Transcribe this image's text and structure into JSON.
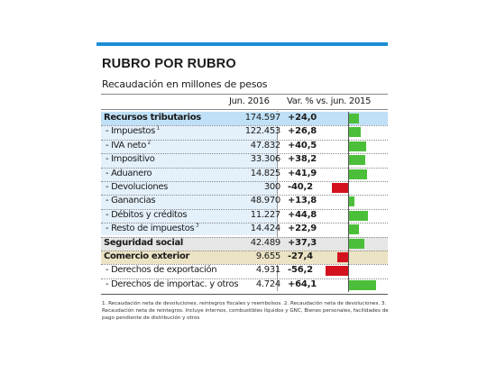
{
  "title": "RUBRO POR RUBRO",
  "subtitle": "Recaudación en millones de pesos",
  "columns": {
    "amount": "Jun. 2016",
    "variation": "Var. % vs. jun. 2015"
  },
  "rows": [
    {
      "label": "Recursos tributarios",
      "sup": "",
      "amount": "174.597",
      "variation": "+24,0"
    },
    {
      "label": "- Impuestos",
      "sup": "1",
      "amount": "122.453",
      "variation": "+26,8"
    },
    {
      "label": "- IVA neto",
      "sup": "2",
      "amount": "47.832",
      "variation": "+40,5"
    },
    {
      "label": "- Impositivo",
      "sup": "",
      "amount": "33.306",
      "variation": "+38,2"
    },
    {
      "label": "- Aduanero",
      "sup": "",
      "amount": "14.825",
      "variation": "+41,9"
    },
    {
      "label": "- Devoluciones",
      "sup": "",
      "amount": "300",
      "variation": "-40,2"
    },
    {
      "label": "- Ganancias",
      "sup": "",
      "amount": "48.970",
      "variation": "+13,8"
    },
    {
      "label": "- Débitos y créditos",
      "sup": "",
      "amount": "11.227",
      "variation": "+44,8"
    },
    {
      "label": "- Resto de impuestos",
      "sup": "3",
      "amount": "14.424",
      "variation": "+22,9"
    },
    {
      "label": "Seguridad social",
      "sup": "",
      "amount": "42.489",
      "variation": "+37,3"
    },
    {
      "label": "Comercio exterior",
      "sup": "",
      "amount": "9.655",
      "variation": "-27,4"
    },
    {
      "label": "- Derechos de exportación",
      "sup": "",
      "amount": "4.931",
      "variation": "-56,2"
    },
    {
      "label": "- Derechos de importac. y otros",
      "sup": "",
      "amount": "4.724",
      "variation": "+64,1"
    }
  ],
  "footnote": "1. Recaudación neta de devoluciones, reintegros fiscales y reembolsos. 2. Recaudación neta de devoluciones. 3. Recaudación neta de reintegros. Incluye internos, combustibles líquidos y GNC, Bienes personales, facilidades de pago pendiente de distribución y otros",
  "colors": {
    "accent": "#1a8ed6",
    "positive": "#4cbf3a",
    "negative": "#d4121f",
    "highlight_blue": "#bfe0f6",
    "highlight_gray": "#e6e6e6",
    "highlight_beige": "#ece3c4"
  },
  "chart_data": {
    "type": "bar",
    "title": "RUBRO POR RUBRO",
    "subtitle": "Recaudación en millones de pesos",
    "categories": [
      "Recursos tributarios",
      "- Impuestos",
      "- IVA neto",
      "- Impositivo",
      "- Aduanero",
      "- Devoluciones",
      "- Ganancias",
      "- Débitos y créditos",
      "- Resto de impuestos",
      "Seguridad social",
      "Comercio exterior",
      "- Derechos de exportación",
      "- Derechos de importac. y otros"
    ],
    "series": [
      {
        "name": "Var. % vs. jun. 2015",
        "values": [
          24.0,
          26.8,
          40.5,
          38.2,
          41.9,
          -40.2,
          13.8,
          44.8,
          22.9,
          37.3,
          -27.4,
          -56.2,
          64.1
        ]
      }
    ],
    "amounts_jun_2016": [
      174597,
      122453,
      47832,
      33306,
      14825,
      300,
      48970,
      11227,
      14424,
      42489,
      9655,
      4931,
      4724
    ],
    "orientation": "horizontal",
    "grid": false
  }
}
